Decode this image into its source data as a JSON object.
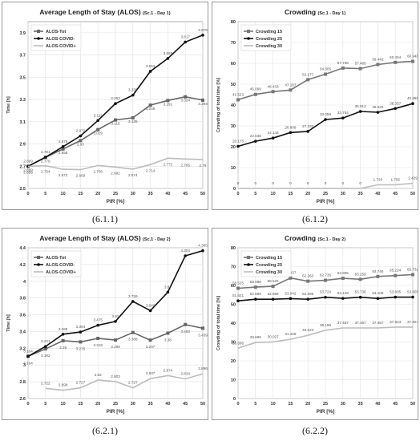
{
  "charts": [
    {
      "caption": "(6.1.1)",
      "chart_data": {
        "type": "line",
        "title": "Average Length of Stay (ALOS)",
        "subtitle": "(Sc.1 - Day 1)",
        "xlabel": "PIR [%]",
        "ylabel": "Time [h]",
        "x": [
          0,
          5,
          10,
          15,
          20,
          25,
          30,
          35,
          40,
          45,
          50
        ],
        "ylim": [
          2.5,
          4.0
        ],
        "yticks": [
          "2.5",
          "2.7",
          "2.9",
          "3.1",
          "3.3",
          "3.5",
          "3.7",
          "3.9"
        ],
        "grid": true,
        "legend_position": "top-left",
        "series": [
          {
            "name": "ALOS-Tot",
            "color": "#666666",
            "marker": "square",
            "values": [
              2.699,
              2.779,
              2.855,
              2.93,
              3.029,
              3.116,
              3.135,
              3.249,
              3.291,
              3.324,
              3.294
            ],
            "labels": [
              "2.699",
              "2.779",
              "2.855",
              "2.93",
              "3.029",
              "3.116",
              "3.135",
              "3.249",
              "3.291",
              "3.324",
              "3.294"
            ]
          },
          {
            "name": "ALOS-COVID-",
            "color": "#111111",
            "marker": "circle",
            "values": [
              2.699,
              2.781,
              2.876,
              2.972,
              3.111,
              3.263,
              3.339,
              3.553,
              3.669,
              3.817,
              3.879
            ],
            "labels": [
              "2.699",
              "2.781",
              "2.876",
              "2.972",
              "3.111",
              "3.263",
              "3.339",
              "3.553",
              "3.669",
              "3.817",
              "3.879"
            ]
          },
          {
            "name": "ALOS-COVID+",
            "color": "#bcbcbc",
            "marker": "none",
            "values": [
              2.699,
              2.704,
              2.672,
              2.669,
              2.706,
              2.692,
              2.674,
              2.714,
              2.772,
              2.765,
              2.76
            ],
            "labels": [
              "2.699",
              "2.704",
              "2.672",
              "2.669",
              "2.706",
              "2.692",
              "2.674",
              "2.714",
              "2.772",
              "2.765",
              "2.76"
            ]
          }
        ]
      }
    },
    {
      "caption": "(6.1.2)",
      "chart_data": {
        "type": "line",
        "title": "Crowding",
        "subtitle": "(Sc.1 - Day 1)",
        "xlabel": "PIR [%]",
        "ylabel": "Crowding of total time [%]",
        "x": [
          0,
          5,
          10,
          15,
          20,
          25,
          30,
          35,
          40,
          45,
          50
        ],
        "ylim": [
          0,
          80
        ],
        "yticks": [
          "0",
          "10",
          "20",
          "30",
          "40",
          "50",
          "60",
          "70",
          "80"
        ],
        "grid": true,
        "legend_position": "top-left",
        "series": [
          {
            "name": "Crowding 15",
            "color": "#777777",
            "marker": "square",
            "values": [
              42.523,
              45.099,
              46.433,
              47.187,
              52.177,
              54.805,
              57.736,
              57.465,
              59.442,
              60.454,
              60.948
            ],
            "labels": [
              "42.523",
              "45.099",
              "46.433",
              "47.187",
              "52.177",
              "54.805",
              "57.736",
              "57.465",
              "59.442",
              "60.454",
              "60.948"
            ]
          },
          {
            "name": "Crowding 25",
            "color": "#111111",
            "marker": "circle",
            "values": [
              20.175,
              22.636,
              24.143,
              26.808,
              27.332,
              33.056,
              33.784,
              36.914,
              36.526,
              38.357,
              40.688
            ],
            "labels": [
              "20.175",
              "22.636",
              "24.143",
              "26.808",
              "27.332",
              "33.056",
              "33.784",
              "36.914",
              "36.526",
              "38.357",
              "40.688"
            ]
          },
          {
            "name": "Crowding 30",
            "color": "#bcbcbc",
            "marker": "none",
            "values": [
              0,
              0,
              0,
              0,
              0,
              0,
              0,
              0,
              1.726,
              1.755,
              2.429
            ],
            "labels": [
              "0",
              "0",
              "0",
              "0",
              "0",
              "0",
              "0",
              "0",
              "1.726",
              "1.755",
              "2.429"
            ]
          }
        ]
      }
    },
    {
      "caption": "(6.2.1)",
      "chart_data": {
        "type": "line",
        "title": "Average Length of Stay (ALOS)",
        "subtitle": "(Sc.1 - Day 2)",
        "xlabel": "PIR [%]",
        "ylabel": "Time [h]",
        "x": [
          0,
          5,
          10,
          15,
          20,
          25,
          30,
          35,
          40,
          45,
          50
        ],
        "ylim": [
          2.6,
          4.4
        ],
        "yticks": [
          "2.6",
          "2.8",
          "3",
          "3.2",
          "3.4",
          "3.6",
          "3.8",
          "4",
          "4.2",
          "4.4"
        ],
        "grid": true,
        "legend_position": "top-left",
        "series": [
          {
            "name": "ALOS-Tot",
            "color": "#666666",
            "marker": "square",
            "values": [
              3.104,
              3.192,
              3.29,
              3.276,
              3.318,
              3.298,
              3.388,
              3.297,
              3.38,
              3.483,
              3.439
            ],
            "labels": [
              "3.104",
              "3.192",
              "3.29",
              "3.276",
              "3.318",
              "3.298",
              "3.388",
              "3.297",
              "3.38",
              "3.483",
              "3.439"
            ]
          },
          {
            "name": "ALOS-COVID-",
            "color": "#111111",
            "marker": "circle",
            "values": [
              3.104,
              3.221,
              3.368,
              3.394,
              3.475,
              3.52,
              3.759,
              3.649,
              3.87,
              4.304,
              4.365
            ],
            "labels": [
              "3.104",
              "3.221",
              "3.368",
              "3.394",
              "3.475",
              "3.52",
              "3.759",
              "3.649",
              "3.87",
              "4.304",
              "4.365"
            ]
          },
          {
            "name": "ALOS-COVID+",
            "color": "#bcbcbc",
            "marker": "none",
            "values": [
              null,
              2.722,
              2.699,
              2.727,
              2.82,
              2.803,
              2.727,
              2.837,
              2.874,
              2.834,
              2.896
            ],
            "labels": [
              "",
              "2.722",
              "2.699",
              "2.727",
              "2.82",
              "2.803",
              "2.727",
              "2.837",
              "2.874",
              "2.834",
              "2.896"
            ]
          }
        ]
      }
    },
    {
      "caption": "(6.2.2)",
      "chart_data": {
        "type": "line",
        "title": "Crowding",
        "subtitle": "(Sc.1 - Day 2)",
        "xlabel": "PIR [%]",
        "ylabel": "Crowding of total time [%]",
        "x": [
          0,
          5,
          10,
          15,
          20,
          25,
          30,
          35,
          40,
          45,
          50
        ],
        "ylim": [
          0,
          80
        ],
        "yticks": [
          "0",
          "10",
          "20",
          "30",
          "40",
          "50",
          "60",
          "70",
          "80"
        ],
        "grid": true,
        "legend_position": "top-left",
        "series": [
          {
            "name": "Crowding 15",
            "color": "#777777",
            "marker": "square",
            "values": [
              58.525,
              59.088,
              59.525,
              63.937,
              62.263,
              62.735,
              63.805,
              63.259,
              64.746,
              65.224,
              65.732
            ],
            "labels": [
              "58.525",
              "59.088",
              "59.525",
              "63.937",
              "62.263",
              "62.735",
              "63.805",
              "63.259",
              "64.746",
              "65.224",
              "65.732"
            ]
          },
          {
            "name": "Crowding 25",
            "color": "#111111",
            "marker": "circle",
            "values": [
              51.821,
              52.689,
              52.689,
              53.042,
              52.695,
              53.724,
              53.128,
              53.736,
              53.108,
              53.805,
              53.805
            ],
            "labels": [
              "51.821",
              "52.689",
              "52.689",
              "53.042",
              "52.695",
              "53.724",
              "53.128",
              "53.736",
              "53.108",
              "53.805",
              "53.805"
            ]
          },
          {
            "name": "Crowding 30",
            "color": "#bcbcbc",
            "marker": "none",
            "values": [
              26.696,
              29.699,
              30.027,
              31.449,
              33.523,
              36.196,
              37.457,
              37.457,
              37.457,
              37.924,
              37.924
            ],
            "labels": [
              "26.696",
              "29.699",
              "30.027",
              "31.449",
              "33.523",
              "36.196",
              "37.457",
              "37.457",
              "37.457",
              "37.924",
              "37.924"
            ]
          }
        ]
      }
    }
  ]
}
